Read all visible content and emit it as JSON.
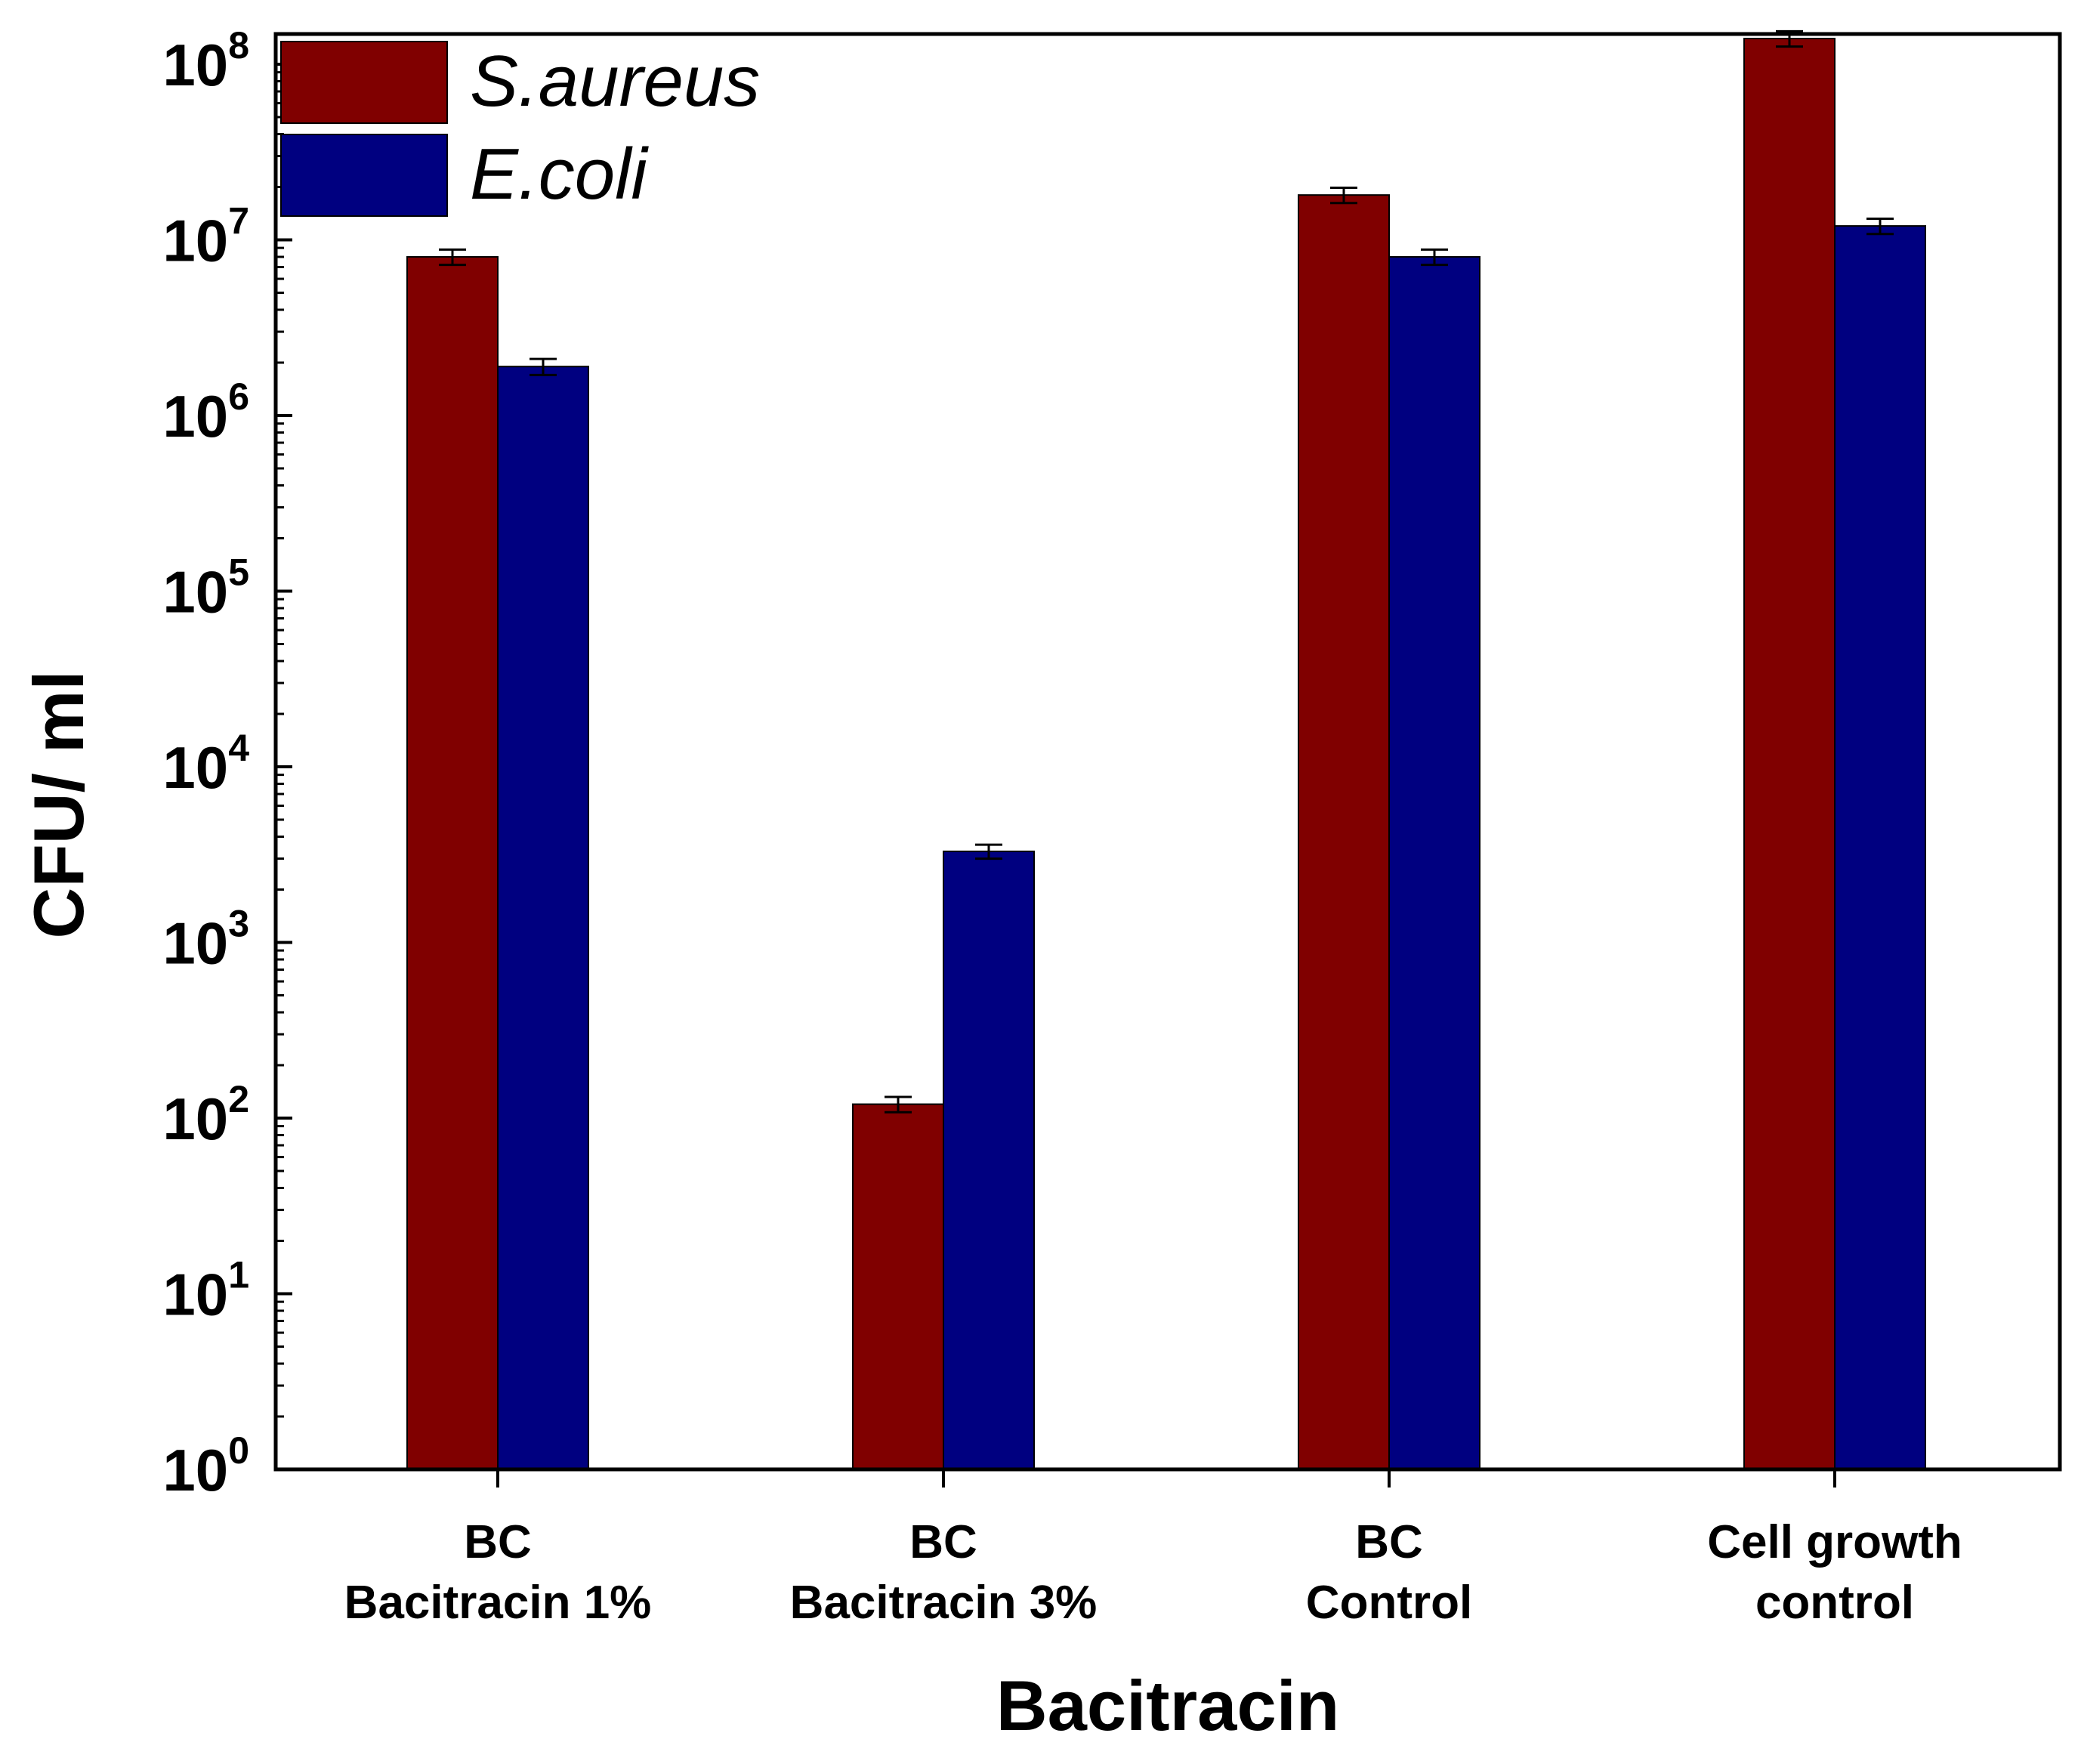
{
  "chart_data": {
    "type": "bar",
    "scale": "log",
    "categories": [
      [
        "BC",
        "Bacitracin 1%"
      ],
      [
        "BC",
        "Bacitracin 3%"
      ],
      [
        "BC",
        "Control"
      ],
      [
        "Cell growth",
        "control"
      ]
    ],
    "series": [
      {
        "name": "S.aureus",
        "color": "#800000",
        "values": [
          8000000,
          120,
          18000000,
          140000000
        ],
        "errors": [
          800000,
          12,
          1800000,
          14000000
        ]
      },
      {
        "name": "E.coli",
        "color": "#000080",
        "values": [
          1900000,
          3300,
          8000000,
          12000000
        ],
        "errors": [
          200000,
          300,
          800000,
          1200000
        ]
      }
    ],
    "xlabel": "Bacitracin",
    "ylabel": "CFU/ ml",
    "ylim": [
      1,
      150000000
    ],
    "yticks": [
      {
        "value": 1,
        "base": "10",
        "exp": "0"
      },
      {
        "value": 10,
        "base": "10",
        "exp": "1"
      },
      {
        "value": 100,
        "base": "10",
        "exp": "2"
      },
      {
        "value": 1000,
        "base": "10",
        "exp": "3"
      },
      {
        "value": 10000,
        "base": "10",
        "exp": "4"
      },
      {
        "value": 100000,
        "base": "10",
        "exp": "5"
      },
      {
        "value": 1000000,
        "base": "10",
        "exp": "6"
      },
      {
        "value": 10000000,
        "base": "10",
        "exp": "7"
      },
      {
        "value": 100000000,
        "base": "10",
        "exp": "8"
      }
    ],
    "legend": "top-left",
    "grid": false
  }
}
